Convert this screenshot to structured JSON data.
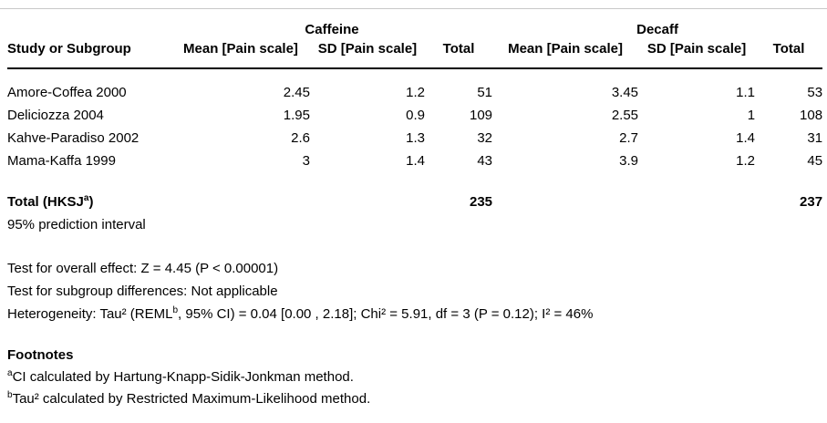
{
  "colors": {
    "background": "#ffffff",
    "text": "#000000",
    "top_divider_gray": "#c8c8c8",
    "header_rule_black": "#000000"
  },
  "table": {
    "group_headers": [
      {
        "label": "Caffeine"
      },
      {
        "label": "Decaff"
      }
    ],
    "column_headers": {
      "study": "Study or Subgroup",
      "caffeine_mean": "Mean [Pain scale]",
      "caffeine_sd": "SD [Pain scale]",
      "caffeine_total": "Total",
      "decaff_mean": "Mean [Pain scale]",
      "decaff_sd": "SD [Pain scale]",
      "decaff_total": "Total"
    },
    "rows": [
      {
        "study": "Amore-Coffea 2000",
        "caffeine_mean": "2.45",
        "caffeine_sd": "1.2",
        "caffeine_total": "51",
        "decaff_mean": "3.45",
        "decaff_sd": "1.1",
        "decaff_total": "53"
      },
      {
        "study": "Deliciozza 2004",
        "caffeine_mean": "1.95",
        "caffeine_sd": "0.9",
        "caffeine_total": "109",
        "decaff_mean": "2.55",
        "decaff_sd": "1",
        "decaff_total": "108"
      },
      {
        "study": "Kahve-Paradiso 2002",
        "caffeine_mean": "2.6",
        "caffeine_sd": "1.3",
        "caffeine_total": "32",
        "decaff_mean": "2.7",
        "decaff_sd": "1.4",
        "decaff_total": "31"
      },
      {
        "study": "Mama-Kaffa 1999",
        "caffeine_mean": "3",
        "caffeine_sd": "1.4",
        "caffeine_total": "43",
        "decaff_mean": "3.9",
        "decaff_sd": "1.2",
        "decaff_total": "45"
      }
    ],
    "total_row": {
      "label_pre": "Total (HKSJ",
      "label_sup": "a",
      "label_post": ")",
      "caffeine_total": "235",
      "decaff_total": "237"
    },
    "prediction_interval_label": "95% prediction interval"
  },
  "statistics": {
    "overall_effect": "Test for overall effect: Z = 4.45 (P < 0.00001)",
    "subgroup_differences": "Test for subgroup differences: Not applicable",
    "heterogeneity_pre": "Heterogeneity: Tau² (REML",
    "heterogeneity_sup": "b",
    "heterogeneity_post": ", 95% CI) = 0.04 [0.00 , 2.18]; Chi² = 5.91, df = 3 (P = 0.12); I² = 46%"
  },
  "footnotes": {
    "heading": "Footnotes",
    "items": [
      {
        "sup": "a",
        "text": "CI calculated by Hartung-Knapp-Sidik-Jonkman method."
      },
      {
        "sup": "b",
        "text": "Tau² calculated by Restricted Maximum-Likelihood method."
      }
    ]
  }
}
